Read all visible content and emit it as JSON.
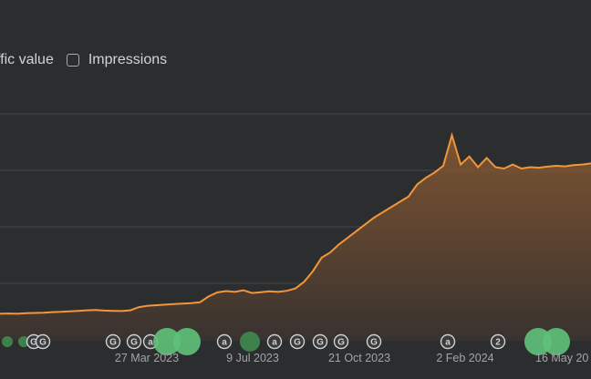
{
  "legend": {
    "traffic_value_label": "ffic value",
    "impressions_label": "Impressions"
  },
  "colors": {
    "background": "#2c2d2f",
    "line": "#f2963a",
    "grid": "#45474a",
    "marker_green": "#5fc27a",
    "marker_gray": "#3a3b3d"
  },
  "chart_data": {
    "type": "area",
    "x_tick_labels": [
      "27 Mar 2023",
      "9 Jul 2023",
      "21 Oct 2023",
      "2 Feb 2024",
      "16 May 20"
    ],
    "grid": true,
    "series": [
      {
        "values": [
          5.0,
          5.1,
          5.0,
          5.2,
          5.3,
          5.4,
          5.6,
          5.7,
          5.9,
          6.1,
          6.3,
          6.4,
          6.2,
          6.1,
          6.0,
          6.3,
          7.5,
          8.0,
          8.2,
          8.4,
          8.6,
          8.8,
          9.0,
          9.3,
          11.5,
          13.0,
          13.5,
          13.2,
          13.8,
          12.8,
          13.1,
          13.4,
          13.2,
          13.6,
          14.5,
          17.0,
          21.0,
          26.0,
          28.0,
          31.0,
          33.5,
          36.0,
          38.5,
          41.0,
          43.0,
          45.0,
          47.0,
          49.0,
          53.5,
          56.0,
          58.0,
          60.5,
          72.0,
          61.0,
          64.0,
          60.0,
          63.5,
          60.0,
          59.5,
          61.0,
          59.5,
          60.0,
          59.8,
          60.2,
          60.5,
          60.3,
          60.8,
          61.0,
          61.4
        ]
      }
    ],
    "event_markers": [
      {
        "type": "green"
      },
      {
        "type": "green"
      },
      {
        "type": "G"
      },
      {
        "type": "G"
      },
      {
        "type": "G"
      },
      {
        "type": "G"
      },
      {
        "type": "a"
      },
      {
        "type": "green-large"
      },
      {
        "type": "green-large"
      },
      {
        "type": "a"
      },
      {
        "type": "green"
      },
      {
        "type": "a"
      },
      {
        "type": "G"
      },
      {
        "type": "G"
      },
      {
        "type": "G"
      },
      {
        "type": "G"
      },
      {
        "type": "a"
      },
      {
        "type": "2"
      },
      {
        "type": "green-large"
      },
      {
        "type": "green-large"
      }
    ]
  }
}
